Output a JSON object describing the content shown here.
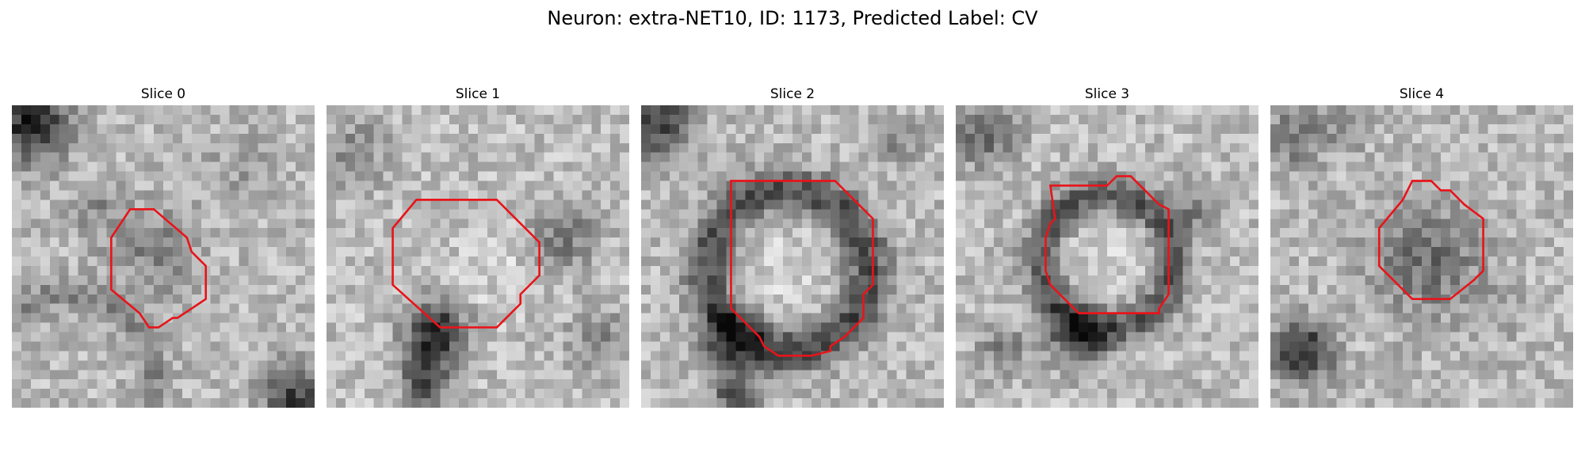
{
  "figure": {
    "title": "Neuron: extra-NET10, ID: 1173, Predicted Label: CV"
  },
  "colors": {
    "background": "#ffffff",
    "contour": "#e8141a",
    "dark_pixel": "#111111",
    "light_pixel": "#eeeeee"
  },
  "slices": [
    {
      "label": "Slice 0"
    },
    {
      "label": "Slice 1"
    },
    {
      "label": "Slice 2"
    },
    {
      "label": "Slice 3"
    },
    {
      "label": "Slice 4"
    }
  ]
}
